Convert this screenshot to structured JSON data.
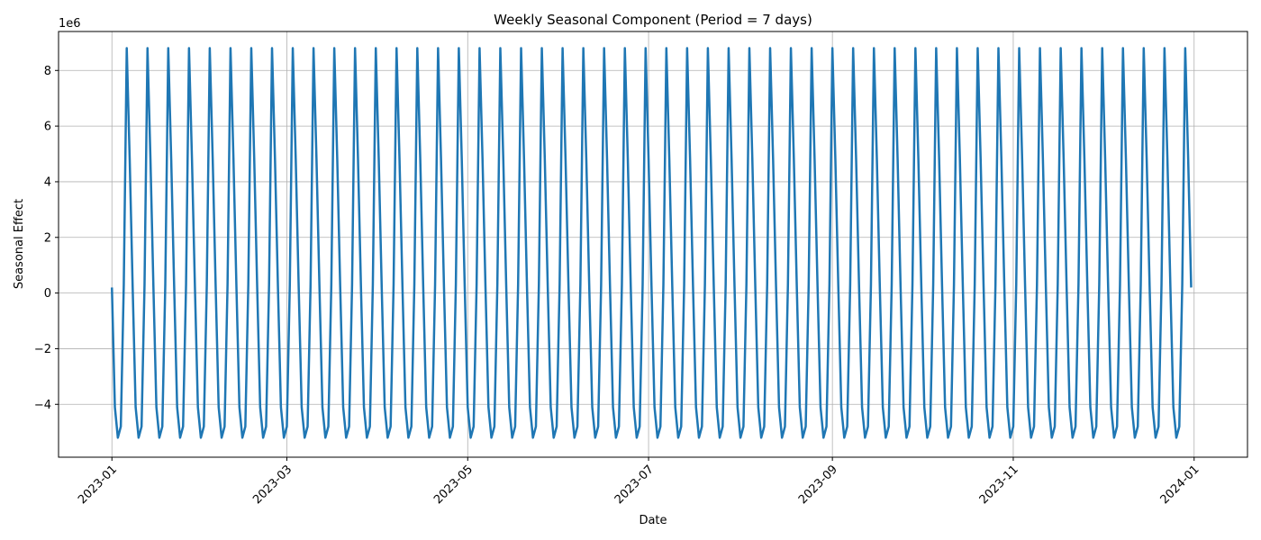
{
  "chart_data": {
    "type": "line",
    "title": "Weekly Seasonal Component (Period = 7 days)",
    "xlabel": "Date",
    "ylabel": "Seasonal Effect",
    "y_scale_label": "1e6",
    "x_range": [
      "2023-01-01",
      "2023-12-31"
    ],
    "xlim": [
      "2022-12-14",
      "2024-01-19"
    ],
    "ylim": [
      -5.9,
      9.4
    ],
    "y_ticks": [
      -4,
      -2,
      0,
      2,
      4,
      6,
      8
    ],
    "y_tick_labels": [
      "−4",
      "−2",
      "0",
      "2",
      "4",
      "6",
      "8"
    ],
    "x_ticks": [
      "2023-01-01",
      "2023-03-01",
      "2023-05-01",
      "2023-07-01",
      "2023-09-01",
      "2023-11-01",
      "2024-01-01"
    ],
    "x_tick_labels": [
      "2023-01",
      "2023-03",
      "2023-05",
      "2023-07",
      "2023-09",
      "2023-11",
      "2024-01"
    ],
    "grid": true,
    "series": [
      {
        "period_days": 7,
        "weekly_pattern": [
          0.2,
          -4.1,
          -5.2,
          -4.8,
          0.3,
          8.8,
          4.8
        ],
        "color": "#1f77b4"
      }
    ]
  }
}
